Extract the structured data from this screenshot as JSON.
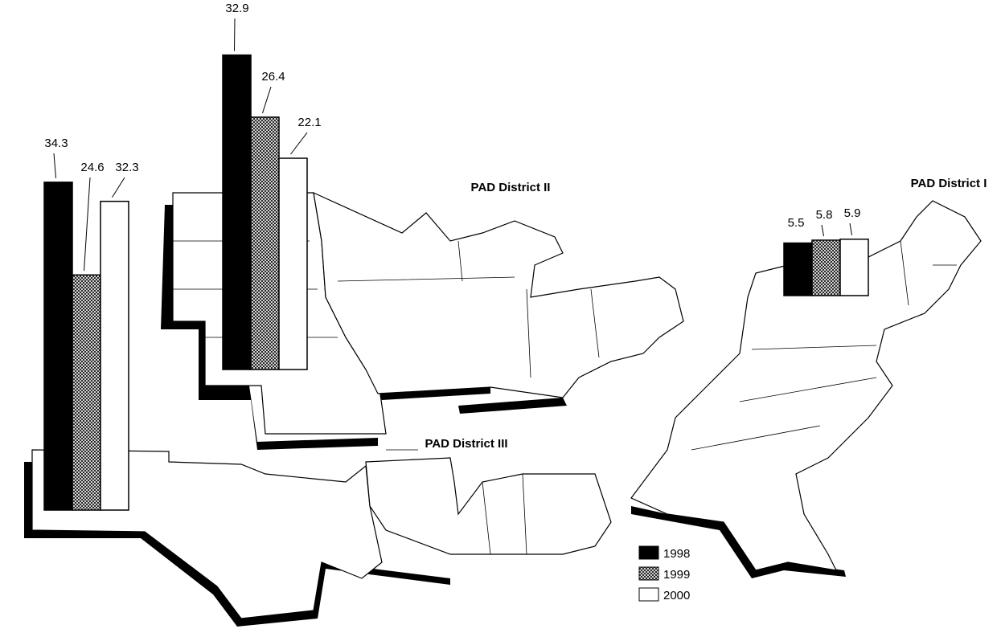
{
  "districts": [
    {
      "name": "PAD District III",
      "values": [
        34.3,
        24.6,
        32.3
      ]
    },
    {
      "name": "PAD District II",
      "values": [
        32.9,
        26.4,
        22.1
      ]
    },
    {
      "name": "PAD District I",
      "values": [
        5.5,
        5.8,
        5.9
      ]
    }
  ],
  "legend": [
    "1998",
    "1999",
    "2000"
  ]
}
